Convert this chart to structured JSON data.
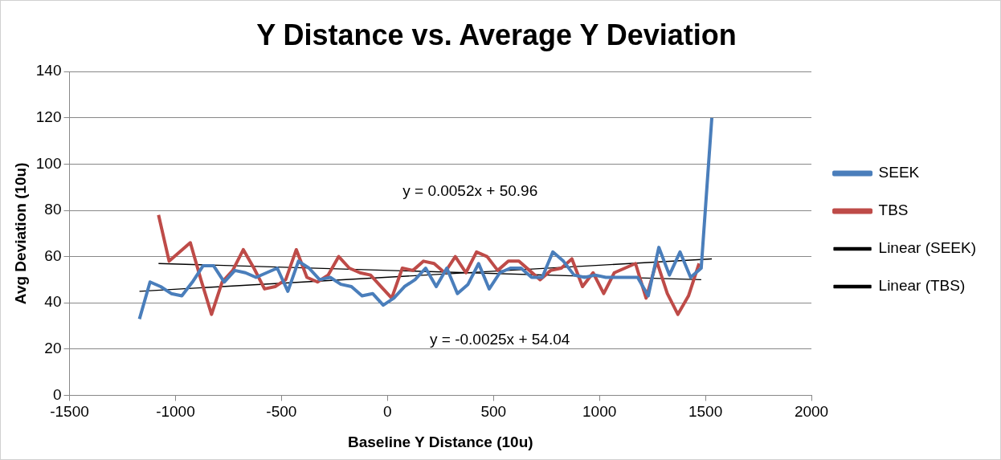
{
  "chart_data": {
    "type": "line",
    "title": "Y Distance vs. Average Y Deviation",
    "xlabel": "Baseline Y Distance (10u)",
    "ylabel": "Avg Deviation (10u)",
    "xlim": [
      -1500,
      2000
    ],
    "xticks": [
      -1500,
      -1000,
      -500,
      0,
      500,
      1000,
      1500,
      2000
    ],
    "ylim": [
      0,
      140
    ],
    "yticks": [
      0,
      20,
      40,
      60,
      80,
      100,
      120,
      140
    ],
    "grid": "y",
    "legend": "right",
    "marker": "none",
    "annotations": [
      "y = 0.0052x + 50.96",
      "y = -0.0025x + 54.04"
    ],
    "series": [
      {
        "name": "SEEK",
        "color": "#4a7ebb",
        "x": [
          -1170,
          -1120,
          -1070,
          -1020,
          -970,
          -920,
          -870,
          -820,
          -770,
          -720,
          -670,
          -620,
          -570,
          -520,
          -470,
          -420,
          -370,
          -320,
          -270,
          -220,
          -170,
          -120,
          -70,
          -20,
          30,
          80,
          130,
          180,
          230,
          280,
          330,
          380,
          430,
          480,
          530,
          580,
          630,
          680,
          730,
          780,
          830,
          880,
          930,
          980,
          1030,
          1080,
          1130,
          1180,
          1230,
          1280,
          1330,
          1380,
          1430,
          1480,
          1530
        ],
        "values": [
          33,
          49,
          47,
          44,
          43,
          49,
          56,
          56,
          49,
          54,
          53,
          51,
          53,
          55,
          45,
          58,
          55,
          50,
          51,
          48,
          47,
          43,
          44,
          39,
          42,
          47,
          50,
          55,
          47,
          55,
          44,
          48,
          57,
          46,
          53,
          55,
          55,
          51,
          51,
          62,
          58,
          52,
          51,
          52,
          51,
          51,
          51,
          51,
          43,
          64,
          52,
          62,
          51,
          55,
          120
        ]
      },
      {
        "name": "TBS",
        "color": "#be4b48",
        "x": [
          -1080,
          -1030,
          -980,
          -930,
          -880,
          -830,
          -780,
          -730,
          -680,
          -630,
          -580,
          -530,
          -480,
          -430,
          -380,
          -330,
          -280,
          -230,
          -180,
          -130,
          -80,
          -30,
          20,
          70,
          120,
          170,
          220,
          270,
          320,
          370,
          420,
          470,
          520,
          570,
          620,
          670,
          720,
          770,
          820,
          870,
          920,
          970,
          1020,
          1070,
          1120,
          1170,
          1220,
          1270,
          1320,
          1370,
          1420,
          1470
        ],
        "values": [
          78,
          58,
          62,
          66,
          50,
          35,
          49,
          54,
          63,
          55,
          46,
          47,
          50,
          63,
          51,
          49,
          52,
          60,
          55,
          53,
          52,
          47,
          42,
          55,
          54,
          58,
          57,
          53,
          60,
          53,
          62,
          60,
          54,
          58,
          58,
          54,
          50,
          54,
          55,
          59,
          47,
          53,
          44,
          53,
          55,
          57,
          42,
          58,
          44,
          35,
          43,
          57
        ]
      },
      {
        "name": "Linear (SEEK)",
        "type": "line",
        "color": "#000000",
        "x": [
          -1170,
          1530
        ],
        "values": [
          45,
          59
        ]
      },
      {
        "name": "Linear (TBS)",
        "type": "line",
        "color": "#000000",
        "x": [
          -1080,
          1480
        ],
        "values": [
          57,
          50
        ]
      }
    ]
  }
}
